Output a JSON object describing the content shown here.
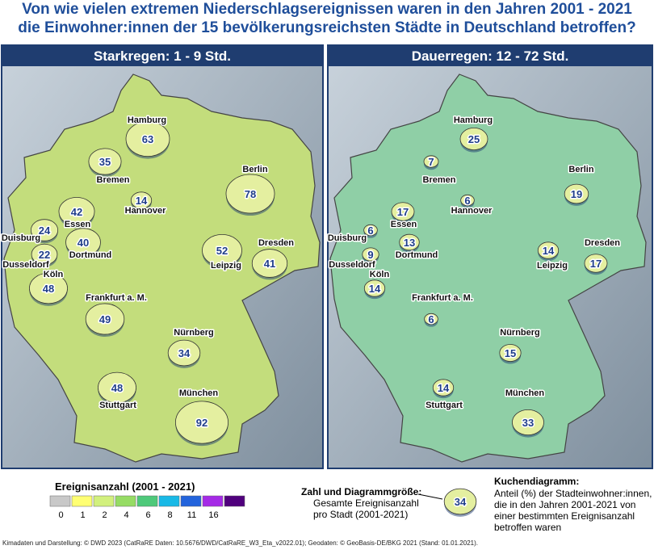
{
  "title": [
    "Von wie vielen extremen Niederschlagsereignissen waren in den Jahren 2001 - 2021",
    "die Einwohner:innen der 15 bevölkerungsreichsten Städte in Deutschland betroffen?"
  ],
  "panels": [
    {
      "title": "Starkregen: 1 - 9 Std.",
      "map_color": "#c3dd7c",
      "cities": [
        {
          "name": "Hamburg",
          "count": 63
        },
        {
          "name": "Bremen",
          "count": 35
        },
        {
          "name": "Berlin",
          "count": 78
        },
        {
          "name": "Hannover",
          "count": 14
        },
        {
          "name": "Essen",
          "count": 42
        },
        {
          "name": "Duisburg",
          "count": 24
        },
        {
          "name": "Dortmund",
          "count": 40
        },
        {
          "name": "Dusseldorf",
          "count": 22
        },
        {
          "name": "Köln",
          "count": 48
        },
        {
          "name": "Leipzig",
          "count": 52
        },
        {
          "name": "Dresden",
          "count": 41
        },
        {
          "name": "Frankfurt a. M.",
          "count": 49
        },
        {
          "name": "Nürnberg",
          "count": 34
        },
        {
          "name": "Stuttgart",
          "count": 48
        },
        {
          "name": "München",
          "count": 92
        }
      ]
    },
    {
      "title": "Dauerregen: 12 - 72 Std.",
      "map_color": "#8fcfa6",
      "cities": [
        {
          "name": "Hamburg",
          "count": 25
        },
        {
          "name": "Bremen",
          "count": 7
        },
        {
          "name": "Berlin",
          "count": 19
        },
        {
          "name": "Hannover",
          "count": 6
        },
        {
          "name": "Essen",
          "count": 17
        },
        {
          "name": "Duisburg",
          "count": 6
        },
        {
          "name": "Dortmund",
          "count": 13
        },
        {
          "name": "Dusseldorf",
          "count": 9
        },
        {
          "name": "Köln",
          "count": 14
        },
        {
          "name": "Leipzig",
          "count": 14
        },
        {
          "name": "Dresden",
          "count": 17
        },
        {
          "name": "Frankfurt a. M.",
          "count": 6
        },
        {
          "name": "Nürnberg",
          "count": 15
        },
        {
          "name": "Stuttgart",
          "count": 14
        },
        {
          "name": "München",
          "count": 33
        }
      ]
    }
  ],
  "legend": {
    "title": "Ereignisanzahl (2001 - 2021)",
    "ticks": [
      0,
      1,
      2,
      4,
      6,
      8,
      11,
      16
    ],
    "colors": [
      "#c8c8c8",
      "#ffff73",
      "#d2f07d",
      "#96dc64",
      "#4ec97a",
      "#19b9e6",
      "#2364dc",
      "#a52ae6",
      "#50007d"
    ]
  },
  "explanation": {
    "size_title": "Zahl und Diagrammgröße:",
    "size_text": [
      "Gesamte Ereignisanzahl",
      "pro Stadt (2001-2021)"
    ],
    "example_count": 34,
    "pie_title": "Kuchendiagramm:",
    "pie_text": [
      "Anteil (%) der Stadteinwohner:innen,",
      "die in den Jahren 2001-2021 von",
      "einer bestimmten Ereignisanzahl",
      "betroffen waren"
    ]
  },
  "footer": "Kimadaten und Darstellung: © DWD 2023 (CatRaRE Daten: 10.5676/DWD/CatRaRE_W3_Eta_v2022.01); Geodaten: © GeoBasis-DE/BKG 2021 (Stand: 01.01.2021)."
}
